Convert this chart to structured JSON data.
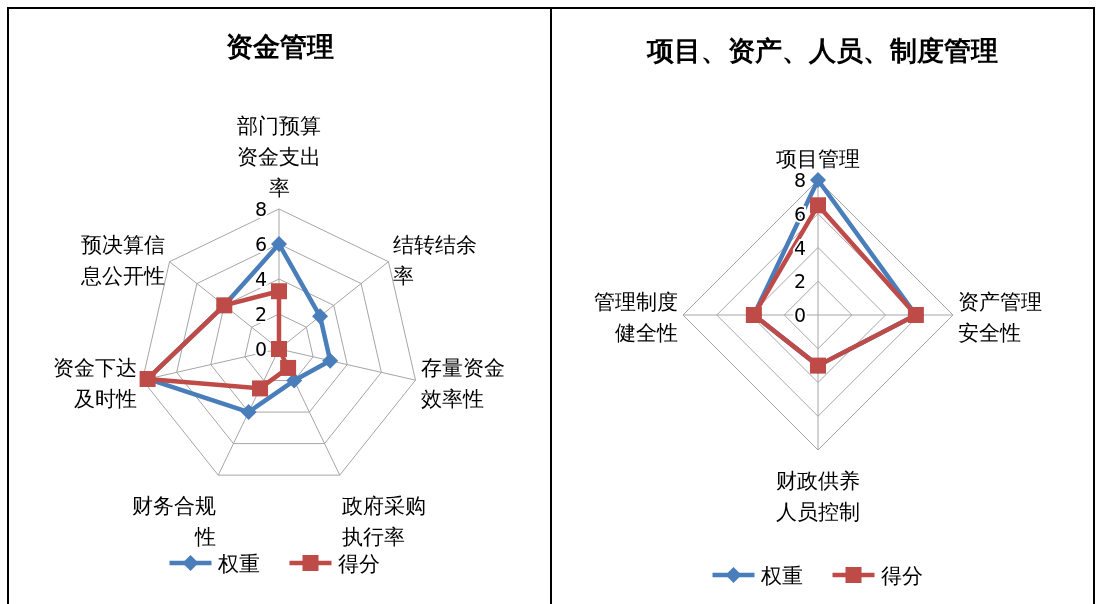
{
  "chart_data": [
    {
      "type": "radar",
      "title": "资金管理",
      "categories": [
        "部门预算资金支出率",
        "结转结余率",
        "存量资金效率性",
        "政府采购执行率",
        "财务合规性",
        "资金下达及时性",
        "预决算信息公开性"
      ],
      "series": [
        {
          "name": "权重",
          "color": "#4a7ebb",
          "marker": "diamond",
          "values": [
            6,
            3,
            3,
            2,
            4,
            7.7,
            4
          ]
        },
        {
          "name": "得分",
          "color": "#be4b48",
          "marker": "square",
          "values": [
            3.3,
            0,
            0,
            1.2,
            2.5,
            7.7,
            4
          ]
        }
      ],
      "ylim": [
        0,
        8
      ],
      "yticks": [
        0,
        2,
        4,
        6,
        8
      ],
      "grid": true,
      "legend": "bottom"
    },
    {
      "type": "radar",
      "title": "项目、资产、人员、制度管理",
      "categories": [
        "项目管理",
        "资产管理安全性",
        "财政供养人员控制",
        "管理制度健全性"
      ],
      "series": [
        {
          "name": "权重",
          "color": "#4a7ebb",
          "marker": "diamond",
          "values": [
            8,
            5.8,
            3,
            3.8
          ]
        },
        {
          "name": "得分",
          "color": "#be4b48",
          "marker": "square",
          "values": [
            6.5,
            5.8,
            3,
            3.8
          ]
        }
      ],
      "ylim": [
        0,
        8
      ],
      "yticks": [
        0,
        2,
        4,
        6,
        8
      ],
      "grid": true,
      "legend": "bottom"
    }
  ]
}
